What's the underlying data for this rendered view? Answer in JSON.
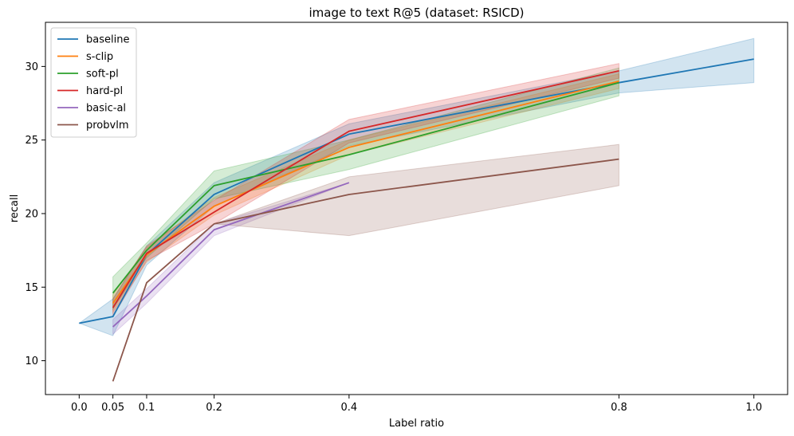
{
  "chart_data": {
    "type": "line",
    "title": "image to text R@5 (dataset: RSICD)",
    "xlabel": "Label ratio",
    "ylabel": "recall",
    "xlim": [
      -0.05,
      1.05
    ],
    "ylim": [
      7.7,
      33.0
    ],
    "xticks": [
      0.0,
      0.05,
      0.1,
      0.2,
      0.4,
      0.8,
      1.0
    ],
    "xtick_labels": [
      "0.0",
      "0.05",
      "0.1",
      "0.2",
      "0.4",
      "0.8",
      "1.0"
    ],
    "yticks": [
      10,
      15,
      20,
      25,
      30
    ],
    "ytick_labels": [
      "10",
      "15",
      "20",
      "25",
      "30"
    ],
    "grid": false,
    "legend_position": "top-left",
    "series": [
      {
        "name": "baseline",
        "color": "#1f77b4",
        "x": [
          0.0,
          0.05,
          0.1,
          0.2,
          0.4,
          0.8,
          1.0
        ],
        "y": [
          12.55,
          13.0,
          17.2,
          21.3,
          25.4,
          28.9,
          30.5
        ],
        "lower": [
          12.55,
          11.7,
          16.5,
          20.5,
          24.6,
          28.2,
          28.9
        ],
        "upper": [
          12.55,
          14.2,
          17.8,
          22.1,
          26.1,
          29.7,
          31.9
        ]
      },
      {
        "name": "s-clip",
        "color": "#ff7f0e",
        "x": [
          0.05,
          0.1,
          0.2,
          0.4,
          0.8
        ],
        "y": [
          13.9,
          17.2,
          20.5,
          24.5,
          29.0
        ],
        "lower": [
          13.3,
          16.7,
          19.9,
          24.0,
          28.5
        ],
        "upper": [
          14.5,
          17.7,
          21.1,
          25.0,
          29.5
        ]
      },
      {
        "name": "soft-pl",
        "color": "#2ca02c",
        "x": [
          0.05,
          0.1,
          0.2,
          0.4,
          0.8
        ],
        "y": [
          14.6,
          17.5,
          21.9,
          24.0,
          28.9
        ],
        "lower": [
          13.5,
          17.0,
          21.0,
          23.0,
          28.0
        ],
        "upper": [
          15.7,
          18.0,
          22.9,
          25.0,
          29.9
        ]
      },
      {
        "name": "hard-pl",
        "color": "#d62728",
        "x": [
          0.05,
          0.1,
          0.2,
          0.4,
          0.8
        ],
        "y": [
          13.6,
          17.3,
          20.1,
          25.6,
          29.7
        ],
        "lower": [
          13.0,
          16.8,
          19.3,
          24.8,
          29.2
        ],
        "upper": [
          14.2,
          17.8,
          20.9,
          26.4,
          30.2
        ]
      },
      {
        "name": "basic-al",
        "color": "#9467bd",
        "x": [
          0.05,
          0.1,
          0.2,
          0.4
        ],
        "y": [
          12.3,
          14.4,
          18.9,
          22.1
        ],
        "lower": [
          11.8,
          13.9,
          18.5,
          22.1
        ],
        "upper": [
          12.8,
          14.9,
          19.3,
          22.1
        ]
      },
      {
        "name": "probvlm",
        "color": "#8c564b",
        "x": [
          0.05,
          0.1,
          0.2,
          0.4,
          0.8
        ],
        "y": [
          8.6,
          15.3,
          19.3,
          21.3,
          23.7
        ],
        "lower": [
          8.6,
          15.3,
          19.3,
          18.5,
          21.9
        ],
        "upper": [
          8.6,
          15.3,
          19.3,
          22.5,
          24.7
        ]
      }
    ]
  }
}
